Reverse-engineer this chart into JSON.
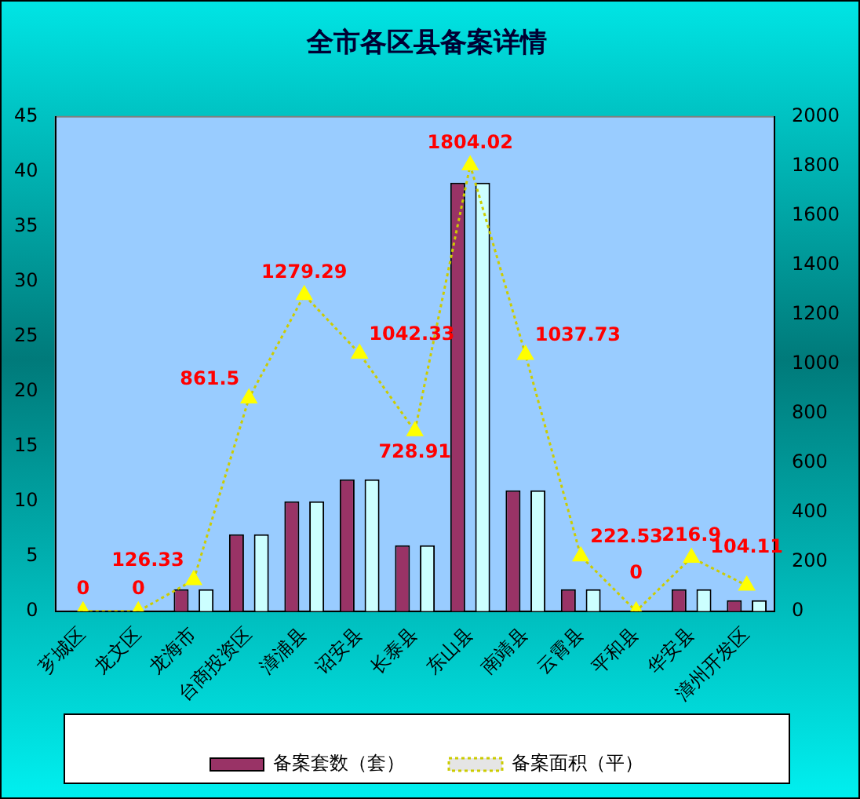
{
  "chart_data": {
    "type": "bar",
    "title": "全市各区县备案详情",
    "categories": [
      "芗城区",
      "龙文区",
      "龙海市",
      "台商投资区",
      "漳浦县",
      "诏安县",
      "长泰县",
      "东山县",
      "南靖县",
      "云霄县",
      "平和县",
      "华安县",
      "漳州开发区"
    ],
    "series": [
      {
        "name": "备案套数（套）",
        "color": "#993366",
        "values": [
          0,
          0,
          2,
          7,
          10,
          12,
          6,
          39,
          11,
          2,
          0,
          2,
          1
        ]
      },
      {
        "color": "#ccffff",
        "values": [
          0,
          0,
          2,
          7,
          10,
          12,
          6,
          39,
          11,
          2,
          0,
          2,
          1
        ]
      },
      {
        "name": "备案面积（平）",
        "type": "line",
        "axis": "y2",
        "color": "#cccc00",
        "marker": "triangle",
        "line_style": "dotted",
        "values": [
          0,
          0,
          126.33,
          861.5,
          1279.29,
          1042.33,
          728.91,
          1804.02,
          1037.73,
          222.53,
          0,
          216.9,
          104.11
        ],
        "value_labels": [
          "0",
          "0",
          "126.33",
          "861.5",
          "1279.29",
          "1042.33",
          "728.91",
          "1804.02",
          "1037.73",
          "222.53",
          "0",
          "216.9",
          "104.11"
        ]
      }
    ],
    "ylim": [
      0,
      45
    ],
    "yticks": [
      0,
      5,
      10,
      15,
      20,
      25,
      30,
      35,
      40,
      45
    ],
    "y2lim": [
      0,
      2000
    ],
    "y2ticks": [
      0,
      200,
      400,
      600,
      800,
      1000,
      1200,
      1400,
      1600,
      1800,
      2000
    ],
    "grid": false,
    "legend": "bottom"
  }
}
